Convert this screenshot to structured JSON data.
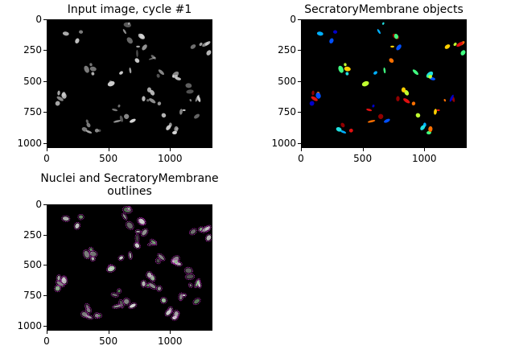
{
  "panels": [
    {
      "title": "Input image, cycle #1",
      "yticks": [
        "0",
        "250",
        "500",
        "750",
        "1000"
      ],
      "xticks": [
        "0",
        "500",
        "1000"
      ]
    },
    {
      "title": "SecratoryMembrane objects",
      "yticks": [
        "0",
        "250",
        "500",
        "750",
        "1000"
      ],
      "xticks": [
        "0",
        "500",
        "1000"
      ]
    },
    {
      "title": "Nuclei and SecratoryMembrane\noutlines",
      "yticks": [
        "0",
        "250",
        "500",
        "750",
        "1000"
      ],
      "xticks": [
        "0",
        "500",
        "1000"
      ]
    }
  ],
  "colors": {
    "background": "#000000",
    "cells": "#d9d9d9",
    "outline_membrane": "#d030d0",
    "outline_nuclei": "#3cc83c"
  },
  "object_colormap": [
    "#0000c8",
    "#0050ff",
    "#00b0ff",
    "#20e0e0",
    "#40ff80",
    "#c0ff30",
    "#ffd000",
    "#ff7000",
    "#e01010",
    "#900000"
  ]
}
